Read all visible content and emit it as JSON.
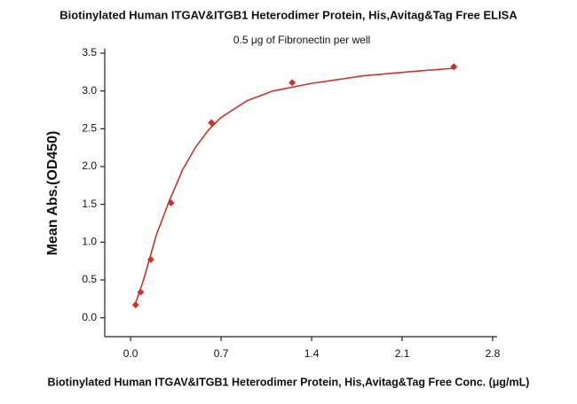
{
  "chart_data": {
    "type": "scatter",
    "title": "Biotinylated Human ITGAV&ITGB1 Heterodimer Protein, His,Avitag&Tag Free ELISA",
    "subtitle": "0.5 μg of Fibronectin per well",
    "x_label": "Biotinylated Human ITGAV&ITGB1 Heterodimer Protein, His,Avitag&Tag Free Conc. (μg/mL)",
    "y_label": "Mean Abs.(OD450)",
    "series": [
      {
        "color": "#c8342c",
        "x": [
          0.039,
          0.078,
          0.156,
          0.3125,
          0.625,
          1.25,
          2.5
        ],
        "values": [
          0.17,
          0.34,
          0.77,
          1.52,
          2.58,
          3.11,
          3.32
        ]
      },
      {
        "color": "#c8342c",
        "line": true,
        "x": [
          0.03,
          0.1,
          0.2,
          0.3,
          0.4,
          0.5,
          0.6,
          0.7,
          0.9,
          1.1,
          1.4,
          1.8,
          2.2,
          2.5
        ],
        "values": [
          0.15,
          0.5,
          1.1,
          1.55,
          1.95,
          2.25,
          2.48,
          2.65,
          2.87,
          3.0,
          3.1,
          3.2,
          3.26,
          3.3
        ]
      }
    ],
    "xlim": [
      -0.2,
      2.8
    ],
    "ylim": [
      -0.25,
      3.5
    ],
    "xticks": [
      {
        "value": 0,
        "label": "0.0"
      },
      0.7,
      1.4,
      2.1,
      2.8
    ],
    "yticks": [
      {
        "value": 0,
        "label": "0.0"
      },
      0.5,
      {
        "value": 1,
        "label": "1.0"
      },
      1.5,
      {
        "value": 2,
        "label": "2.0"
      },
      2.5,
      {
        "value": 3,
        "label": "3.0"
      },
      3.5
    ]
  }
}
